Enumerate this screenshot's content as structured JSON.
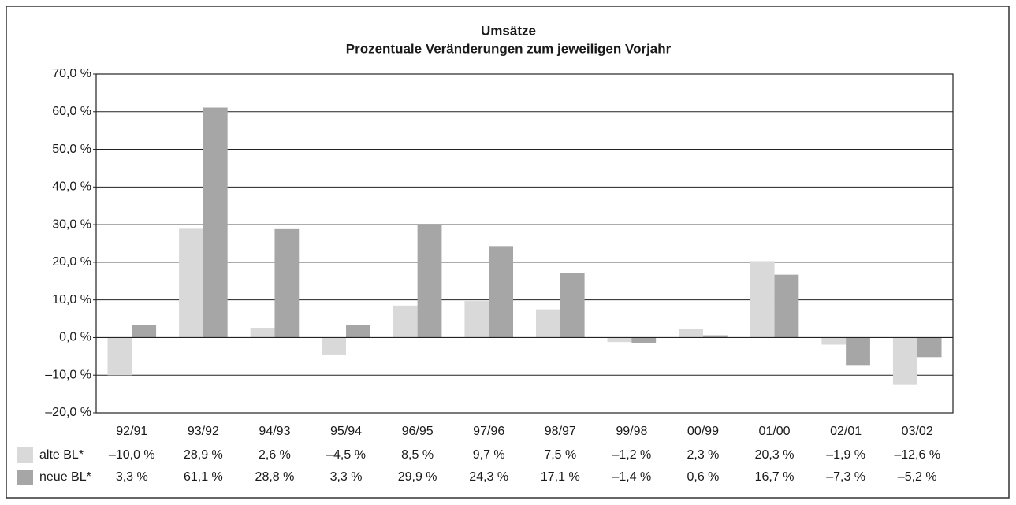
{
  "chart_data": {
    "type": "bar",
    "title": "Umsätze",
    "subtitle": "Prozentuale Veränderungen zum jeweiligen Vorjahr",
    "categories": [
      "92/91",
      "93/92",
      "94/93",
      "95/94",
      "96/95",
      "97/96",
      "98/97",
      "99/98",
      "00/99",
      "01/00",
      "02/01",
      "03/02"
    ],
    "series": [
      {
        "name": "alte BL*",
        "color": "#d9d9d9",
        "values": [
          -10.0,
          28.9,
          2.6,
          -4.5,
          8.5,
          9.7,
          7.5,
          -1.2,
          2.3,
          20.3,
          -1.9,
          -12.6
        ],
        "value_labels": [
          "–10,0 %",
          "28,9 %",
          "2,6 %",
          "–4,5 %",
          "8,5 %",
          "9,7 %",
          "7,5 %",
          "–1,2 %",
          "2,3 %",
          "20,3 %",
          "–1,9 %",
          "–12,6 %"
        ]
      },
      {
        "name": "neue BL*",
        "color": "#a6a6a6",
        "values": [
          3.3,
          61.1,
          28.8,
          3.3,
          29.9,
          24.3,
          17.1,
          -1.4,
          0.6,
          16.7,
          -7.3,
          -5.2
        ],
        "value_labels": [
          "3,3 %",
          "61,1 %",
          "28,8 %",
          "3,3 %",
          "29,9 %",
          "24,3 %",
          "17,1 %",
          "–1,4 %",
          "0,6 %",
          "16,7 %",
          "–7,3 %",
          "–5,2 %"
        ]
      }
    ],
    "ylim": [
      -20,
      70
    ],
    "yticks": [
      {
        "value": -20,
        "label": "–20,0 %"
      },
      {
        "value": -10,
        "label": "–10,0 %"
      },
      {
        "value": 0,
        "label": "0,0 %"
      },
      {
        "value": 10,
        "label": "10,0 %"
      },
      {
        "value": 20,
        "label": "20,0 %"
      },
      {
        "value": 30,
        "label": "30,0 %"
      },
      {
        "value": 40,
        "label": "40,0 %"
      },
      {
        "value": 50,
        "label": "50,0 %"
      },
      {
        "value": 60,
        "label": "60,0 %"
      },
      {
        "value": 70,
        "label": "70,0 %"
      }
    ],
    "grid": true
  }
}
